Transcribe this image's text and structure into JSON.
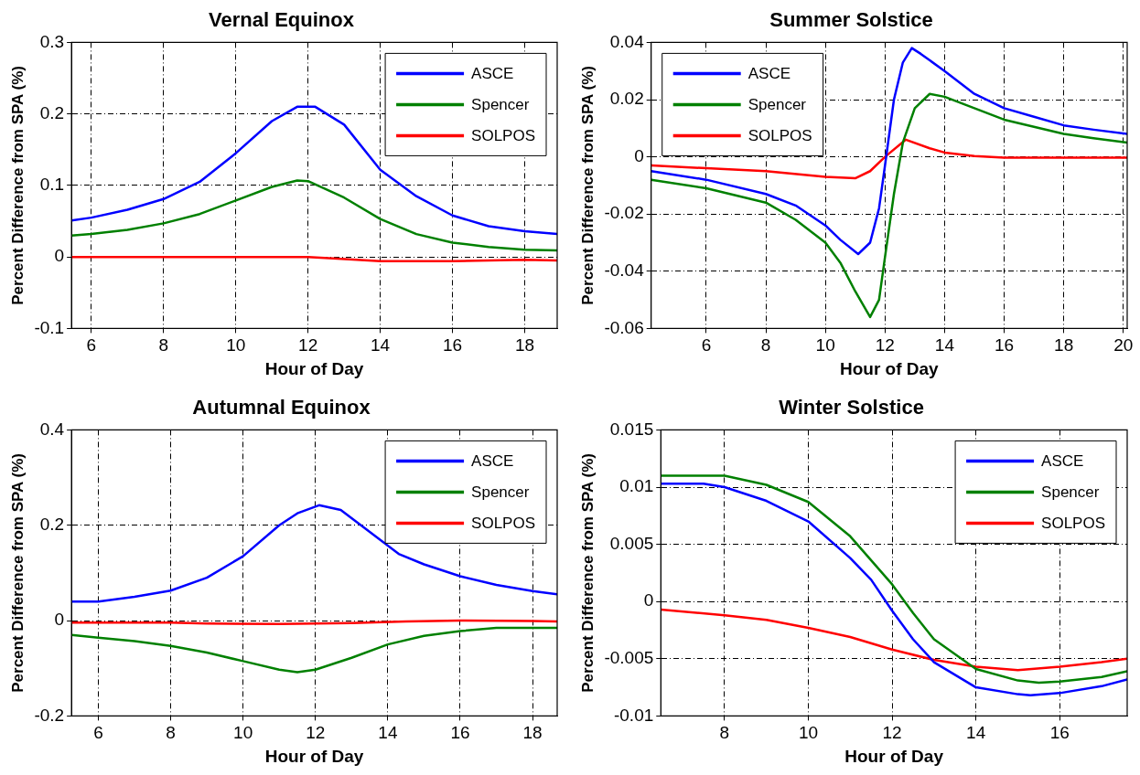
{
  "chart_data": [
    {
      "type": "line",
      "title": "Vernal Equinox",
      "xlabel": "Hour of Day",
      "ylabel": "Percent Difference from SPA (%)",
      "xlim": [
        5.45,
        18.9
      ],
      "xticks": [
        6,
        8,
        10,
        12,
        14,
        16,
        18
      ],
      "ylim": [
        -0.1,
        0.3
      ],
      "yticks": [
        -0.1,
        0,
        0.1,
        0.2,
        0.3
      ],
      "grid": true,
      "legend": "top right",
      "marker": "none",
      "line_style": "solid",
      "series": [
        {
          "name": "ASCE",
          "color": "#0000ff",
          "x": [
            5.45,
            6,
            7,
            8,
            9,
            10,
            11,
            11.7,
            12.2,
            13,
            14,
            15,
            16,
            17,
            18,
            18.9
          ],
          "values": [
            0.051,
            0.055,
            0.066,
            0.081,
            0.105,
            0.145,
            0.19,
            0.21,
            0.21,
            0.185,
            0.122,
            0.085,
            0.058,
            0.043,
            0.036,
            0.032
          ]
        },
        {
          "name": "Spencer",
          "color": "#008000",
          "x": [
            5.45,
            6,
            7,
            8,
            9,
            10,
            11,
            11.7,
            12,
            13,
            14,
            15,
            16,
            17,
            18,
            18.9
          ],
          "values": [
            0.03,
            0.032,
            0.038,
            0.047,
            0.06,
            0.079,
            0.098,
            0.107,
            0.106,
            0.083,
            0.053,
            0.032,
            0.02,
            0.014,
            0.01,
            0.009
          ]
        },
        {
          "name": "SOLPOS",
          "color": "#ff0000",
          "x": [
            5.45,
            10,
            12,
            12.7,
            14,
            16,
            18,
            18.9
          ],
          "values": [
            0,
            0,
            0,
            -0.002,
            -0.006,
            -0.006,
            -0.004,
            -0.005
          ]
        }
      ]
    },
    {
      "type": "line",
      "title": "Summer Solstice",
      "xlabel": "Hour of Day",
      "ylabel": "Percent Difference from SPA (%)",
      "xlim": [
        4.15,
        20.13
      ],
      "xticks": [
        6,
        8,
        10,
        12,
        14,
        16,
        18,
        20
      ],
      "ylim": [
        -0.06,
        0.04
      ],
      "yticks": [
        -0.06,
        -0.04,
        -0.02,
        0,
        0.02,
        0.04
      ],
      "grid": true,
      "legend": "top left",
      "marker": "none",
      "line_style": "solid",
      "series": [
        {
          "name": "ASCE",
          "color": "#0000ff",
          "x": [
            4.15,
            6,
            8,
            9,
            10,
            10.5,
            11.1,
            11.5,
            11.8,
            12,
            12.3,
            12.6,
            12.9,
            13.2,
            14,
            15,
            16,
            17,
            18,
            19,
            20.13
          ],
          "values": [
            -0.005,
            -0.008,
            -0.013,
            -0.017,
            -0.024,
            -0.029,
            -0.034,
            -0.03,
            -0.018,
            -0.003,
            0.02,
            0.033,
            0.038,
            0.036,
            0.03,
            0.022,
            0.017,
            0.014,
            0.011,
            0.0095,
            0.008
          ]
        },
        {
          "name": "Spencer",
          "color": "#008000",
          "x": [
            4.15,
            6,
            8,
            9,
            10,
            10.5,
            11,
            11.5,
            11.8,
            12,
            12.3,
            12.6,
            13,
            13.5,
            14,
            15,
            16,
            17,
            18,
            19,
            20.13
          ],
          "values": [
            -0.008,
            -0.011,
            -0.016,
            -0.022,
            -0.03,
            -0.037,
            -0.047,
            -0.056,
            -0.05,
            -0.035,
            -0.013,
            0.005,
            0.017,
            0.022,
            0.021,
            0.017,
            0.013,
            0.0105,
            0.008,
            0.0065,
            0.005
          ]
        },
        {
          "name": "SOLPOS",
          "color": "#ff0000",
          "x": [
            4.15,
            6,
            8,
            10,
            11,
            11.5,
            12,
            12.7,
            13.5,
            14,
            15,
            16,
            18,
            20.13
          ],
          "values": [
            -0.003,
            -0.004,
            -0.005,
            -0.007,
            -0.0075,
            -0.005,
            0,
            0.006,
            0.003,
            0.0015,
            0.0003,
            -0.0003,
            -0.0003,
            -0.0003
          ]
        }
      ]
    },
    {
      "type": "line",
      "title": "Autumnal Equinox",
      "xlabel": "Hour of Day",
      "ylabel": "Percent Difference from SPA (%)",
      "xlim": [
        5.26,
        18.68
      ],
      "xticks": [
        6,
        8,
        10,
        12,
        14,
        16,
        18
      ],
      "ylim": [
        -0.2,
        0.4
      ],
      "yticks": [
        -0.2,
        0,
        0.2,
        0.4
      ],
      "grid": true,
      "legend": "top right",
      "marker": "none",
      "line_style": "solid",
      "series": [
        {
          "name": "ASCE",
          "color": "#0000ff",
          "x": [
            5.26,
            6,
            7,
            8,
            9,
            10,
            11,
            11.5,
            12.1,
            12.7,
            14.3,
            15,
            16,
            17,
            18,
            18.68
          ],
          "values": [
            0.04,
            0.04,
            0.05,
            0.063,
            0.09,
            0.135,
            0.2,
            0.225,
            0.242,
            0.232,
            0.14,
            0.118,
            0.093,
            0.075,
            0.062,
            0.055
          ]
        },
        {
          "name": "Spencer",
          "color": "#008000",
          "x": [
            5.26,
            6,
            7,
            8,
            9,
            10,
            11,
            11.5,
            12,
            13,
            14,
            15,
            16,
            17,
            18,
            18.68
          ],
          "values": [
            -0.03,
            -0.036,
            -0.043,
            -0.053,
            -0.067,
            -0.085,
            -0.103,
            -0.108,
            -0.103,
            -0.078,
            -0.05,
            -0.032,
            -0.022,
            -0.015,
            -0.015,
            -0.015
          ]
        },
        {
          "name": "SOLPOS",
          "color": "#ff0000",
          "x": [
            5.26,
            8,
            9,
            11,
            12,
            13,
            14.5,
            16,
            18,
            18.68
          ],
          "values": [
            -0.004,
            -0.004,
            -0.006,
            -0.007,
            -0.006,
            -0.005,
            -0.002,
            0,
            -0.001,
            -0.002
          ]
        }
      ]
    },
    {
      "type": "line",
      "title": "Winter Solstice",
      "xlabel": "Hour of Day",
      "ylabel": "Percent Difference from SPA (%)",
      "xlim": [
        6.48,
        17.61
      ],
      "xticks": [
        8,
        10,
        12,
        14,
        16
      ],
      "ylim": [
        -0.01,
        0.015
      ],
      "yticks": [
        -0.01,
        -0.005,
        0,
        0.005,
        0.01,
        0.015
      ],
      "grid": true,
      "legend": "top right",
      "marker": "none",
      "line_style": "solid",
      "series": [
        {
          "name": "ASCE",
          "color": "#0000ff",
          "x": [
            6.48,
            7.5,
            8,
            9,
            10,
            11,
            11.5,
            12,
            12.5,
            13,
            14,
            15,
            15.3,
            16,
            17,
            17.61
          ],
          "values": [
            0.0103,
            0.0103,
            0.01,
            0.0088,
            0.007,
            0.0038,
            0.0019,
            -0.0008,
            -0.0033,
            -0.0053,
            -0.0075,
            -0.0081,
            -0.0082,
            -0.008,
            -0.0074,
            -0.0068
          ]
        },
        {
          "name": "Spencer",
          "color": "#008000",
          "x": [
            6.48,
            8,
            9,
            10,
            11,
            12,
            12.5,
            13,
            14,
            15,
            15.5,
            16,
            17,
            17.61
          ],
          "values": [
            0.011,
            0.011,
            0.0102,
            0.0087,
            0.0057,
            0.0015,
            -0.001,
            -0.0033,
            -0.0059,
            -0.0069,
            -0.0071,
            -0.007,
            -0.0066,
            -0.0061
          ]
        },
        {
          "name": "SOLPOS",
          "color": "#ff0000",
          "x": [
            6.48,
            8,
            9,
            10,
            11,
            12,
            13,
            14,
            15,
            16,
            17,
            17.61
          ],
          "values": [
            -0.0007,
            -0.0012,
            -0.0016,
            -0.0023,
            -0.0031,
            -0.0042,
            -0.0051,
            -0.0057,
            -0.006,
            -0.0057,
            -0.0053,
            -0.005
          ]
        }
      ]
    }
  ]
}
